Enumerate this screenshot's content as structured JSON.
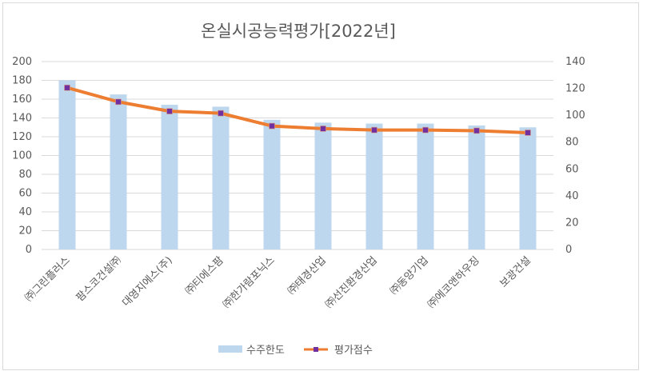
{
  "chart_data": {
    "type": "bar+line",
    "title": "온실시공능력평가[2022년]",
    "categories": [
      "㈜그린플러스",
      "팜스코건설㈜",
      "대영지에스(주)",
      "㈜티에스팜",
      "㈜한가람포닉스",
      "㈜태경산업",
      "㈜선진환경산업",
      "㈜동양기업",
      "㈜에코앤하우징",
      "보광건설"
    ],
    "series": [
      {
        "name": "수주한도",
        "type": "bar",
        "axis": "left",
        "color": "#bdd7ee",
        "values": [
          180,
          165,
          154,
          152,
          138,
          135,
          134,
          134,
          132,
          130
        ]
      },
      {
        "name": "평가점수",
        "type": "line",
        "axis": "right",
        "color": "#ed7d31",
        "marker_color": "#7030a0",
        "values": [
          120.5,
          110,
          103,
          101.5,
          92,
          90,
          89,
          89,
          88.5,
          87
        ]
      }
    ],
    "y_left": {
      "min": 0,
      "max": 200,
      "step": 20,
      "ticks": [
        "0",
        "20",
        "40",
        "60",
        "80",
        "100",
        "120",
        "140",
        "160",
        "180",
        "200"
      ]
    },
    "y_right": {
      "min": 0,
      "max": 140,
      "step": 20,
      "ticks": [
        "0",
        "20",
        "40",
        "60",
        "80",
        "100",
        "120",
        "140"
      ]
    },
    "grid": true,
    "legend_position": "bottom"
  }
}
